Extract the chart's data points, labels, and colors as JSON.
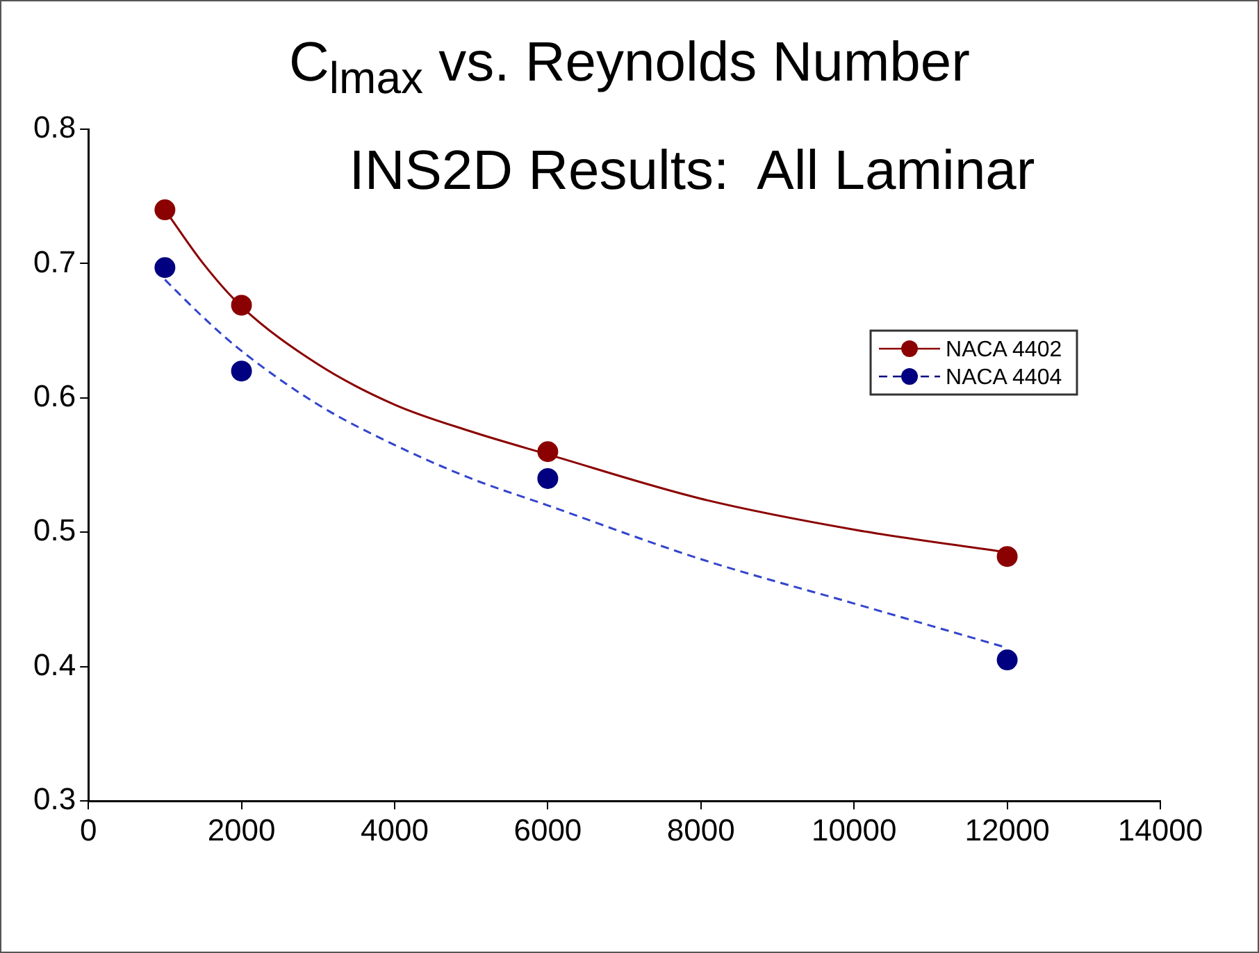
{
  "chart_data": {
    "type": "scatter",
    "title": "C$_{lmax}$ vs. Reynolds Number",
    "subtitle": "INS2D Results:  All Laminar",
    "xlim": [
      0,
      14000
    ],
    "xticks": [
      0,
      2000,
      4000,
      6000,
      8000,
      10000,
      12000,
      14000
    ],
    "ylim": [
      0.3,
      0.8
    ],
    "yticks": [
      0.3,
      0.4,
      0.5,
      0.6,
      0.7,
      0.8
    ],
    "grid": false,
    "legend": "right",
    "series": [
      {
        "name": "NACA 4402",
        "color": "#8b0000",
        "marker": "circle",
        "line_style": "solid",
        "x": [
          1000,
          2000,
          6000,
          12000
        ],
        "values": [
          0.74,
          0.669,
          0.56,
          0.482
        ]
      },
      {
        "name": "NACA 4404",
        "color": "#000080",
        "marker": "circle",
        "line_style": "dashed",
        "x": [
          1000,
          2000,
          6000,
          12000
        ],
        "values": [
          0.697,
          0.62,
          0.54,
          0.405
        ]
      },
      {
        "type": "line",
        "color": "#8b0000",
        "marker": "none",
        "line_style": "solid",
        "x": [
          1000,
          1500,
          2000,
          3000,
          4000,
          5000,
          6000,
          8000,
          10000,
          12000
        ],
        "values": [
          0.74,
          0.7,
          0.668,
          0.625,
          0.595,
          0.575,
          0.558,
          0.525,
          0.502,
          0.485
        ]
      },
      {
        "type": "line",
        "color": "#3344cc",
        "marker": "none",
        "line_style": "dashed",
        "x": [
          1000,
          1500,
          2000,
          3000,
          4000,
          5000,
          6000,
          8000,
          10000,
          12000
        ],
        "values": [
          0.688,
          0.66,
          0.635,
          0.595,
          0.565,
          0.54,
          0.52,
          0.48,
          0.447,
          0.414
        ]
      }
    ]
  }
}
